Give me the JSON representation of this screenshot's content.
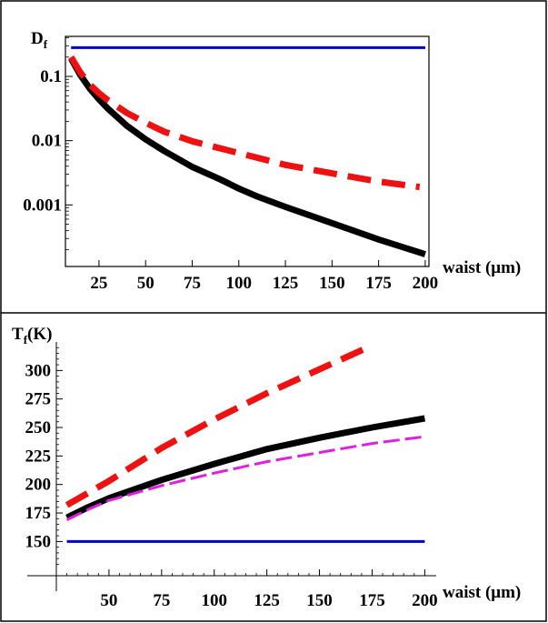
{
  "chart_data": [
    {
      "type": "line",
      "ylabel": "D",
      "ylabel_sub": "f",
      "xlabel": "waist (μm)",
      "yscale": "log",
      "xlim": [
        7,
        202
      ],
      "ylim": [
        0.00011,
        0.42
      ],
      "x_ticks": [
        25,
        50,
        75,
        100,
        125,
        150,
        175,
        200
      ],
      "y_ticks": [
        0.1,
        0.01,
        0.001
      ],
      "y_tick_labels": [
        "0.1",
        "0.01",
        "0.001"
      ],
      "series": [
        {
          "color": "#0000cc",
          "style": "solid",
          "width": 3,
          "points": [
            [
              10,
              0.28
            ],
            [
              200,
              0.28
            ]
          ]
        },
        {
          "color": "#000000",
          "style": "solid",
          "width": 7,
          "points": [
            [
              10,
              0.19
            ],
            [
              15,
              0.105
            ],
            [
              20,
              0.065
            ],
            [
              25,
              0.044
            ],
            [
              30,
              0.031
            ],
            [
              40,
              0.017
            ],
            [
              50,
              0.0105
            ],
            [
              60,
              0.0069
            ],
            [
              75,
              0.0039
            ],
            [
              90,
              0.0025
            ],
            [
              100,
              0.0018
            ],
            [
              110,
              0.00135
            ],
            [
              125,
              0.00093
            ],
            [
              150,
              0.00052
            ],
            [
              175,
              0.00029
            ],
            [
              200,
              0.00017
            ]
          ]
        },
        {
          "color": "#ee1111",
          "style": "dashed",
          "width": 7,
          "points": [
            [
              10,
              0.2
            ],
            [
              15,
              0.115
            ],
            [
              20,
              0.075
            ],
            [
              25,
              0.055
            ],
            [
              30,
              0.042
            ],
            [
              40,
              0.027
            ],
            [
              50,
              0.019
            ],
            [
              60,
              0.0138
            ],
            [
              75,
              0.0098
            ],
            [
              100,
              0.0064
            ],
            [
              125,
              0.0042
            ],
            [
              150,
              0.0031
            ],
            [
              175,
              0.0023
            ],
            [
              197,
              0.0019
            ]
          ]
        }
      ]
    },
    {
      "type": "line",
      "ylabel": "T",
      "ylabel_sub": "f",
      "ylabel_suffix": "(K)",
      "xlabel": "waist (μm)",
      "xlim": [
        25,
        202
      ],
      "ylim": [
        120,
        325
      ],
      "x_ticks": [
        50,
        75,
        100,
        125,
        150,
        175,
        200
      ],
      "y_ticks": [
        150,
        175,
        200,
        225,
        250,
        275,
        300
      ],
      "series": [
        {
          "color": "#0000cc",
          "style": "solid",
          "width": 3,
          "points": [
            [
              30,
              150
            ],
            [
              200,
              150
            ]
          ]
        },
        {
          "color": "#ee1111",
          "style": "dashed",
          "width": 7,
          "points": [
            [
              30,
              182
            ],
            [
              50,
              203
            ],
            [
              75,
              232
            ],
            [
              100,
              257
            ],
            [
              125,
              280
            ],
            [
              150,
              301
            ],
            [
              175,
              322
            ]
          ]
        },
        {
          "color": "#000000",
          "style": "solid",
          "width": 7,
          "points": [
            [
              30,
              171
            ],
            [
              40,
              180
            ],
            [
              50,
              188
            ],
            [
              75,
              204
            ],
            [
              100,
              218
            ],
            [
              125,
              231
            ],
            [
              150,
              241
            ],
            [
              175,
              250
            ],
            [
              200,
              258
            ]
          ]
        },
        {
          "color": "#e020e0",
          "style": "dashed",
          "width": 3,
          "points": [
            [
              30,
              169
            ],
            [
              40,
              178
            ],
            [
              50,
              186
            ],
            [
              75,
              199
            ],
            [
              100,
              210
            ],
            [
              125,
              220
            ],
            [
              150,
              228
            ],
            [
              175,
              236
            ],
            [
              200,
              242
            ]
          ]
        }
      ]
    }
  ]
}
